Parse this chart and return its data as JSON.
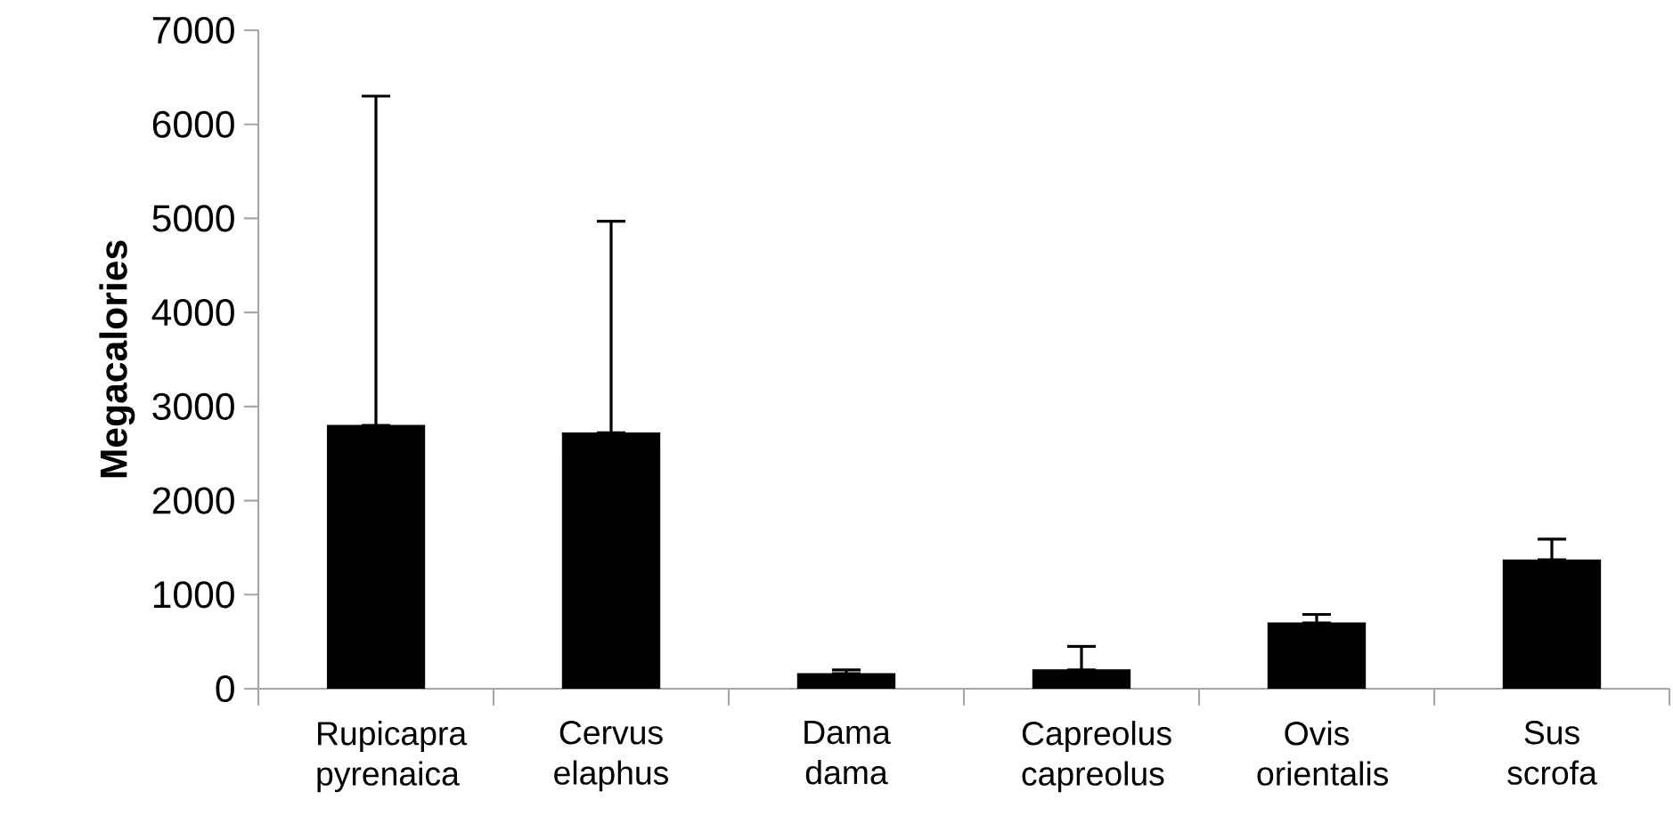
{
  "chart_data": {
    "type": "bar",
    "ylabel": "**Megacalories**",
    "categories": [
      "Rupicapra pyrenaica",
      "Cervus elaphus",
      "Dama dama",
      "Capreolus capreolus",
      "Ovis orientalis",
      "Sus scrofa"
    ],
    "values": [
      2800,
      2720,
      160,
      200,
      700,
      1370
    ],
    "errors": [
      [
        2800,
        6300
      ],
      [
        2720,
        4970
      ],
      [
        160,
        200
      ],
      [
        200,
        450
      ],
      [
        700,
        790
      ],
      [
        1370,
        1590
      ]
    ],
    "color": "#000000",
    "ylim": [
      0,
      7000
    ],
    "yticks": [
      0,
      1000,
      2000,
      3000,
      4000,
      5000,
      6000,
      7000
    ],
    "grid": false
  }
}
